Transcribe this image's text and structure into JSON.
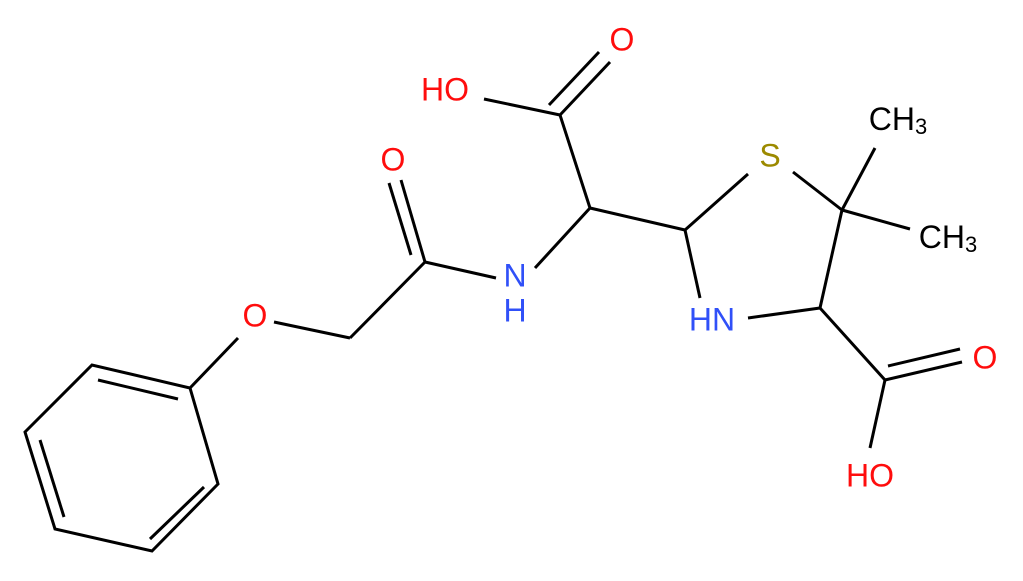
{
  "atoms": [
    {
      "label": "HO"
    },
    {
      "label": "O"
    },
    {
      "label": "O"
    },
    {
      "label": "N",
      "sub_label": "H"
    },
    {
      "label": "S"
    },
    {
      "label": "CH",
      "subscript": "3"
    },
    {
      "label": "CH",
      "subscript": "3"
    },
    {
      "label": "HN"
    },
    {
      "label": "O"
    },
    {
      "label": "O"
    },
    {
      "label": "HO"
    }
  ]
}
